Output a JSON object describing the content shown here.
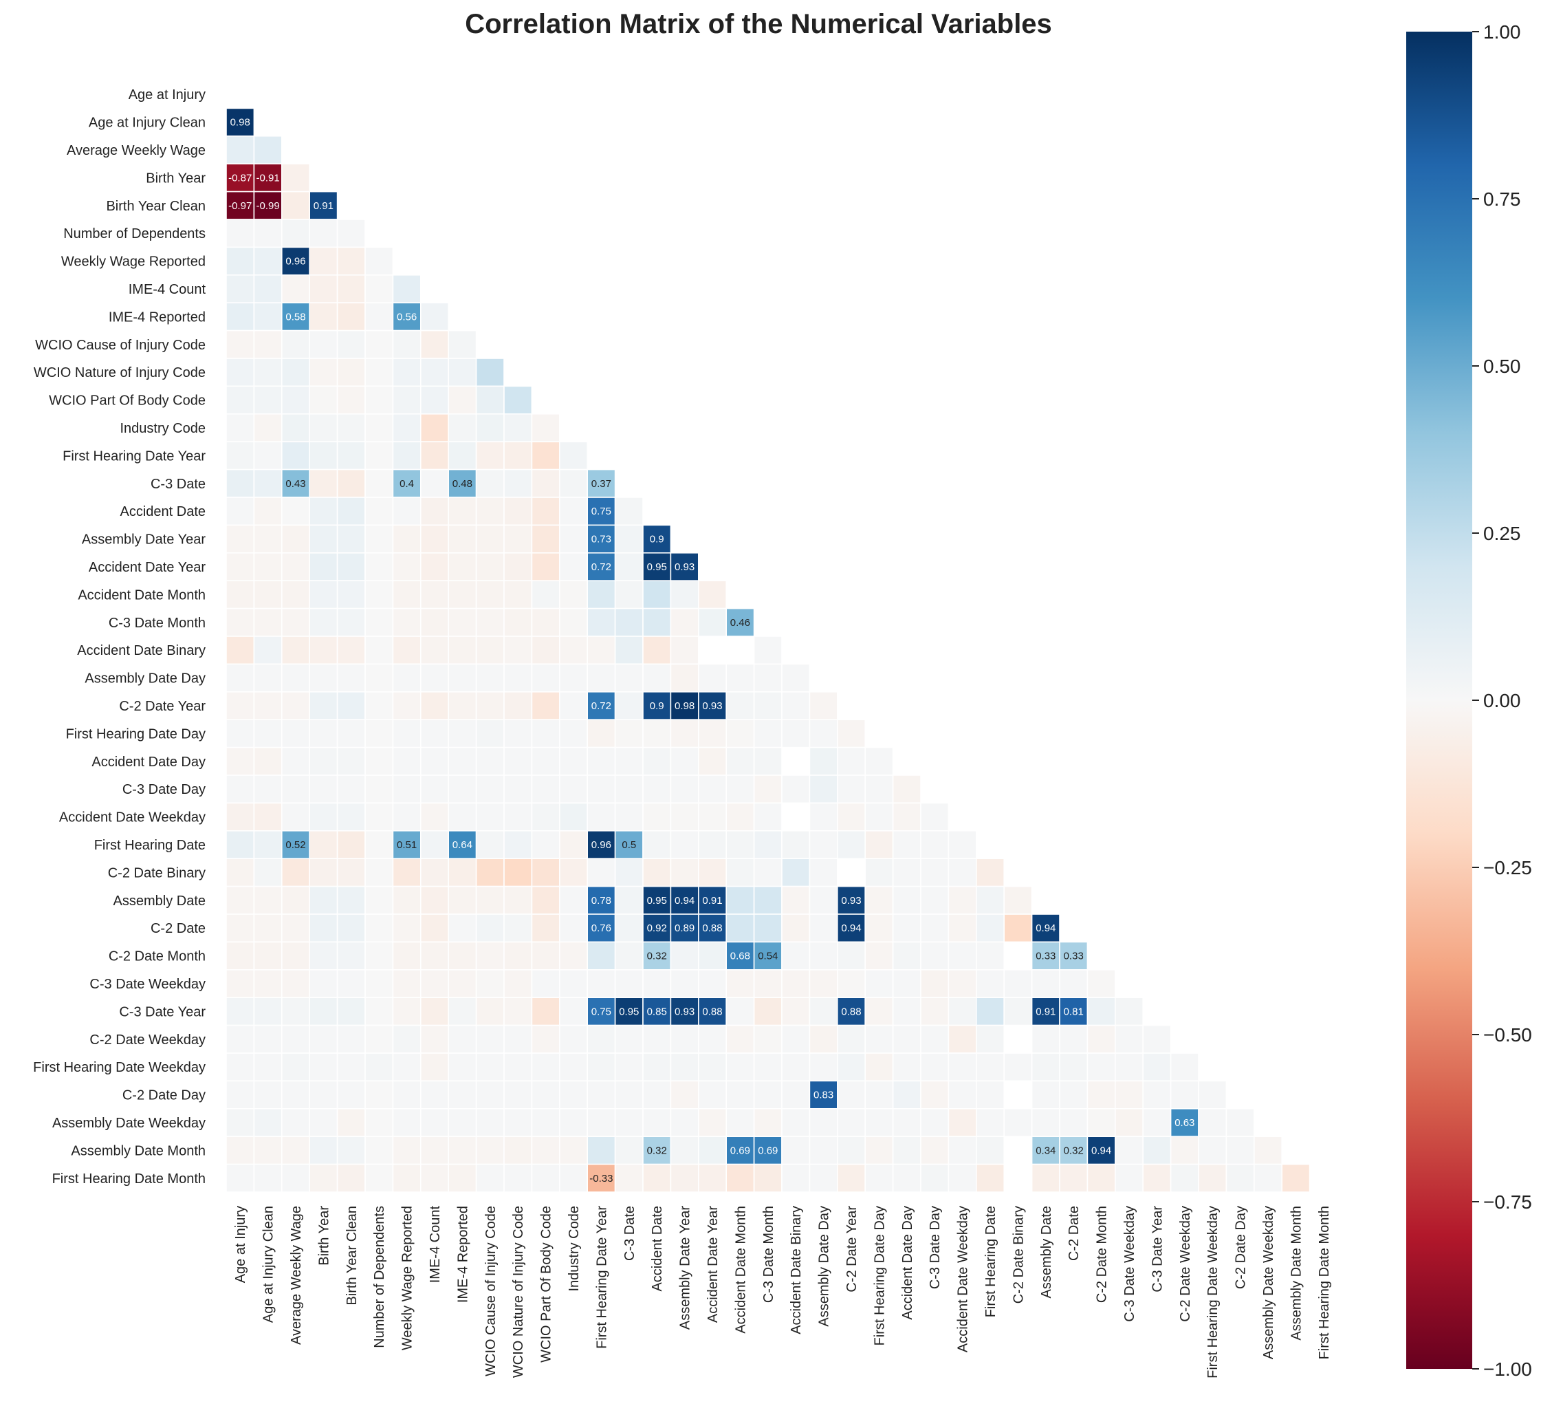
{
  "chart_data": {
    "type": "heatmap",
    "title": "Correlation Matrix of the Numerical Variables",
    "labels": [
      "Age at Injury",
      "Age at Injury Clean",
      "Average Weekly Wage",
      "Birth Year",
      "Birth Year Clean",
      "Number of Dependents",
      "Weekly Wage Reported",
      "IME-4 Count",
      "IME-4 Reported",
      "WCIO Cause of Injury Code",
      "WCIO Nature of Injury Code",
      "WCIO Part Of Body Code",
      "Industry Code",
      "First Hearing Date Year",
      "C-3 Date",
      "Accident Date",
      "Assembly Date Year",
      "Accident Date Year",
      "Accident Date Month",
      "C-3 Date Month",
      "Accident Date Binary",
      "Assembly Date Day",
      "C-2 Date Year",
      "First Hearing Date Day",
      "Accident Date Day",
      "C-3 Date Day",
      "Accident Date Weekday",
      "First Hearing Date",
      "C-2 Date Binary",
      "Assembly Date",
      "C-2 Date",
      "C-2 Date Month",
      "C-3 Date Weekday",
      "C-3 Date Year",
      "C-2 Date Weekday",
      "First Hearing Date Weekday",
      "C-2 Date Day",
      "Assembly Date Weekday",
      "Assembly Date Month",
      "First Hearing Date Month"
    ],
    "mask": "upper triangle including diagonal",
    "annotation_threshold": 0.3,
    "colormap": "RdBu",
    "vmin": -1,
    "vmax": 1,
    "colorbar_ticks": [
      "1.00",
      "0.75",
      "0.50",
      "0.25",
      "0.00",
      "−0.25",
      "−0.50",
      "−0.75",
      "−1.00"
    ],
    "rows": [
      [],
      [
        0.98
      ],
      [
        0.1,
        0.12
      ],
      [
        -0.87,
        -0.91,
        -0.05
      ],
      [
        -0.97,
        -0.99,
        -0.07,
        0.91
      ],
      [
        0.01,
        0.01,
        0.02,
        0.01,
        0.01
      ],
      [
        0.08,
        0.07,
        0.96,
        -0.05,
        -0.06,
        0.01
      ],
      [
        0.06,
        0.07,
        -0.02,
        -0.05,
        -0.06,
        0.0,
        0.1
      ],
      [
        0.09,
        0.07,
        0.58,
        -0.06,
        -0.08,
        0.01,
        0.56,
        0.04
      ],
      [
        -0.02,
        -0.02,
        0.02,
        0.01,
        0.02,
        0.0,
        0.02,
        -0.06,
        0.02
      ],
      [
        0.04,
        0.03,
        0.06,
        -0.02,
        -0.03,
        0.0,
        0.04,
        0.04,
        0.04,
        0.23
      ],
      [
        0.03,
        0.03,
        0.04,
        -0.01,
        -0.02,
        0.0,
        0.03,
        0.04,
        -0.02,
        0.08,
        0.2
      ],
      [
        0.01,
        -0.02,
        0.05,
        0.02,
        0.02,
        0.0,
        0.04,
        -0.15,
        0.02,
        0.05,
        0.03,
        -0.02
      ],
      [
        0.02,
        0.01,
        0.1,
        0.05,
        0.05,
        0.0,
        0.06,
        -0.1,
        0.05,
        -0.05,
        -0.06,
        -0.15,
        0.03
      ],
      [
        0.08,
        0.07,
        0.43,
        -0.06,
        -0.08,
        0.0,
        0.4,
        0.01,
        0.48,
        0.02,
        0.03,
        -0.04,
        0.02,
        0.37
      ],
      [
        0.01,
        -0.02,
        0.0,
        0.06,
        0.08,
        0.0,
        0.01,
        -0.04,
        -0.03,
        -0.03,
        -0.04,
        -0.1,
        0.01,
        0.75,
        0.02
      ],
      [
        -0.02,
        -0.02,
        -0.03,
        0.06,
        0.06,
        0.0,
        -0.03,
        -0.05,
        -0.03,
        -0.03,
        -0.03,
        -0.11,
        0.01,
        0.73,
        0.03,
        0.9
      ],
      [
        -0.02,
        -0.02,
        -0.02,
        0.08,
        0.08,
        0.0,
        -0.02,
        -0.05,
        -0.03,
        -0.03,
        -0.04,
        -0.12,
        0.01,
        0.72,
        0.03,
        0.95,
        0.93
      ],
      [
        -0.03,
        -0.03,
        -0.03,
        0.04,
        0.04,
        0.0,
        -0.03,
        -0.03,
        -0.03,
        -0.03,
        -0.03,
        0.02,
        -0.01,
        0.15,
        0.02,
        0.2,
        0.03,
        -0.05
      ],
      [
        -0.02,
        -0.02,
        -0.02,
        0.03,
        0.03,
        0.0,
        -0.02,
        -0.03,
        -0.02,
        -0.02,
        -0.03,
        -0.03,
        -0.01,
        0.1,
        0.12,
        0.15,
        -0.02,
        0.05,
        0.46
      ],
      [
        -0.1,
        0.04,
        -0.06,
        -0.05,
        -0.05,
        0.0,
        -0.05,
        -0.03,
        -0.03,
        -0.03,
        -0.02,
        -0.04,
        -0.02,
        -0.02,
        0.08,
        -0.1,
        -0.02,
        null,
        null,
        0.01
      ],
      [
        0.01,
        0.01,
        0.01,
        0.01,
        0.01,
        0.0,
        0.01,
        0.01,
        0.01,
        0.01,
        0.01,
        0.01,
        0.01,
        0.01,
        0.01,
        0.01,
        -0.03,
        0.01,
        0.01,
        0.01,
        0.01
      ],
      [
        -0.02,
        -0.02,
        -0.02,
        0.06,
        0.07,
        0.0,
        -0.02,
        -0.06,
        -0.03,
        -0.03,
        -0.04,
        -0.12,
        0.01,
        0.72,
        0.03,
        0.9,
        0.98,
        0.93,
        0.02,
        0.02,
        0.01,
        -0.02
      ],
      [
        0.01,
        0.01,
        0.01,
        0.01,
        0.01,
        0.0,
        0.01,
        0.01,
        0.01,
        0.02,
        0.01,
        0.01,
        0.01,
        -0.03,
        -0.01,
        -0.01,
        -0.02,
        -0.02,
        -0.01,
        0.01,
        0.01,
        0.01,
        -0.02
      ],
      [
        -0.02,
        -0.03,
        0.01,
        0.02,
        0.02,
        0.0,
        0.01,
        0.01,
        0.01,
        0.01,
        0.01,
        0.01,
        0.01,
        0.01,
        0.01,
        0.02,
        0.01,
        -0.03,
        0.02,
        0.02,
        null,
        0.05,
        0.01,
        0.01
      ],
      [
        0.01,
        0.01,
        0.01,
        0.01,
        0.01,
        0.0,
        0.01,
        0.01,
        0.01,
        0.01,
        0.01,
        0.01,
        0.01,
        0.01,
        0.01,
        0.01,
        0.01,
        0.01,
        0.01,
        -0.02,
        0.01,
        0.06,
        0.01,
        0.01,
        -0.03
      ],
      [
        -0.04,
        -0.05,
        0.01,
        0.03,
        0.03,
        0.0,
        0.01,
        -0.02,
        0.01,
        0.01,
        0.01,
        0.02,
        0.05,
        0.01,
        0.01,
        -0.01,
        -0.01,
        -0.01,
        -0.02,
        0.01,
        null,
        0.01,
        -0.02,
        0.01,
        -0.02,
        0.01
      ],
      [
        0.08,
        0.06,
        0.52,
        -0.06,
        -0.08,
        0.0,
        0.51,
        0.03,
        0.64,
        0.02,
        0.04,
        0.01,
        -0.03,
        0.96,
        0.5,
        0.02,
        0.01,
        0.02,
        0.02,
        0.04,
        0.02,
        0.01,
        0.03,
        -0.04,
        0.01,
        0.01,
        0.01
      ],
      [
        -0.03,
        0.02,
        -0.1,
        -0.04,
        -0.04,
        0.0,
        -0.1,
        -0.04,
        -0.06,
        -0.18,
        -0.2,
        -0.14,
        -0.05,
        0.01,
        0.04,
        -0.06,
        -0.03,
        -0.05,
        0.02,
        0.01,
        0.12,
        0.01,
        null,
        0.02,
        0.01,
        0.01,
        0.01,
        -0.07
      ],
      [
        -0.02,
        -0.02,
        -0.03,
        0.06,
        0.06,
        0.0,
        -0.03,
        -0.05,
        -0.03,
        -0.03,
        -0.03,
        -0.1,
        0.01,
        0.78,
        0.03,
        0.95,
        0.94,
        0.91,
        0.18,
        0.18,
        -0.02,
        0.01,
        0.93,
        -0.02,
        0.01,
        0.01,
        -0.02,
        0.03,
        -0.03
      ],
      [
        -0.02,
        -0.02,
        -0.02,
        0.06,
        0.06,
        0.0,
        -0.02,
        -0.06,
        0.01,
        0.03,
        0.02,
        -0.08,
        0.01,
        0.76,
        0.03,
        0.92,
        0.89,
        0.88,
        0.18,
        0.18,
        -0.03,
        0.01,
        0.94,
        -0.02,
        0.01,
        0.01,
        -0.02,
        0.04,
        -0.2,
        0.94
      ],
      [
        -0.03,
        -0.03,
        -0.03,
        0.03,
        0.03,
        0.0,
        -0.03,
        -0.03,
        -0.03,
        -0.02,
        -0.03,
        -0.03,
        -0.02,
        0.15,
        0.02,
        0.32,
        0.03,
        0.05,
        0.68,
        0.54,
        0.01,
        0.01,
        0.02,
        -0.02,
        0.02,
        0.01,
        0.01,
        0.01,
        null,
        0.33,
        0.33
      ],
      [
        -0.02,
        -0.02,
        -0.02,
        0.01,
        0.01,
        0.0,
        -0.02,
        -0.02,
        -0.02,
        -0.01,
        -0.02,
        0.01,
        0.01,
        0.01,
        0.01,
        0.01,
        0.01,
        0.01,
        -0.02,
        -0.02,
        -0.02,
        -0.02,
        -0.01,
        0.01,
        0.01,
        -0.03,
        -0.02,
        0.01,
        0.01,
        0.01,
        0.01,
        -0.01
      ],
      [
        0.03,
        0.03,
        0.02,
        0.05,
        0.05,
        0.0,
        -0.02,
        -0.06,
        0.02,
        -0.03,
        -0.02,
        -0.13,
        0.01,
        0.75,
        0.95,
        0.85,
        0.93,
        0.88,
        0.01,
        -0.08,
        -0.02,
        0.02,
        0.88,
        -0.02,
        0.01,
        -0.02,
        0.02,
        0.18,
        0.02,
        0.91,
        0.81,
        0.06,
        0.02
      ],
      [
        0.01,
        0.01,
        0.01,
        0.01,
        0.01,
        0.0,
        0.02,
        -0.02,
        0.01,
        0.01,
        0.01,
        -0.02,
        0.01,
        0.02,
        0.01,
        0.01,
        0.01,
        0.01,
        -0.02,
        -0.01,
        0.01,
        -0.03,
        0.02,
        0.01,
        0.01,
        0.01,
        -0.06,
        0.02,
        null,
        0.01,
        0.01,
        -0.02,
        0.01,
        0.01
      ],
      [
        0.01,
        0.01,
        0.02,
        0.01,
        0.01,
        0.02,
        0.01,
        -0.03,
        0.01,
        0.01,
        0.01,
        0.01,
        0.01,
        0.02,
        0.01,
        0.02,
        0.02,
        0.02,
        0.01,
        0.01,
        0.01,
        0.01,
        0.03,
        -0.03,
        0.01,
        0.01,
        0.01,
        0.01,
        0.01,
        0.02,
        0.02,
        0.01,
        0.01,
        0.03,
        0.01
      ],
      [
        0.01,
        0.01,
        0.01,
        0.01,
        0.01,
        0.0,
        0.01,
        0.01,
        0.01,
        0.01,
        0.01,
        0.01,
        0.01,
        0.01,
        0.01,
        0.01,
        -0.02,
        0.01,
        0.01,
        0.01,
        0.01,
        0.83,
        0.01,
        0.01,
        0.04,
        -0.02,
        0.01,
        0.01,
        null,
        0.01,
        0.01,
        -0.02,
        -0.02,
        0.01,
        0.01,
        0.01
      ],
      [
        0.02,
        0.03,
        0.01,
        0.01,
        -0.03,
        0.0,
        0.01,
        0.01,
        0.01,
        0.01,
        0.01,
        0.01,
        0.01,
        0.01,
        0.01,
        0.01,
        0.01,
        -0.02,
        0.01,
        -0.02,
        0.01,
        0.01,
        0.01,
        0.01,
        0.01,
        0.01,
        -0.05,
        0.01,
        0.01,
        0.01,
        0.01,
        -0.01,
        -0.03,
        0.01,
        0.63,
        0.01,
        0.01
      ],
      [
        -0.02,
        -0.02,
        -0.02,
        0.04,
        0.03,
        0.0,
        -0.02,
        -0.02,
        -0.02,
        -0.02,
        -0.03,
        -0.02,
        -0.02,
        0.15,
        0.02,
        0.32,
        0.02,
        0.05,
        0.69,
        0.69,
        0.01,
        0.01,
        0.02,
        -0.02,
        0.02,
        -0.02,
        0.01,
        0.02,
        null,
        0.34,
        0.32,
        0.94,
        0.01,
        0.06,
        -0.02,
        0.01,
        0.01,
        -0.02
      ],
      [
        0.01,
        0.01,
        0.01,
        -0.03,
        -0.04,
        0.0,
        -0.03,
        -0.02,
        -0.03,
        0.01,
        0.01,
        0.01,
        0.01,
        -0.33,
        -0.02,
        -0.06,
        -0.04,
        -0.05,
        -0.12,
        -0.08,
        0.01,
        0.01,
        -0.06,
        0.01,
        0.01,
        0.02,
        0.01,
        -0.08,
        null,
        -0.06,
        -0.05,
        -0.06,
        0.01,
        -0.05,
        0.02,
        -0.04,
        0.02,
        0.01,
        -0.12
      ]
    ]
  }
}
